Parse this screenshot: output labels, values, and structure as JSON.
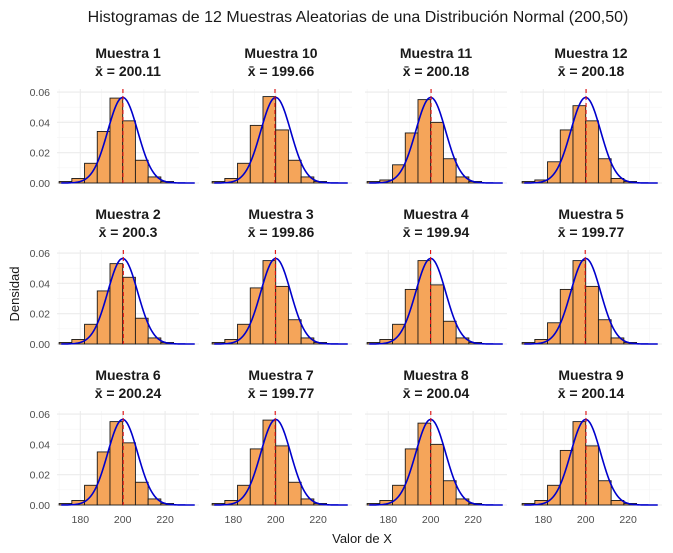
{
  "chart_data": {
    "type": "bar",
    "title": "Histogramas de 12 Muestras Aleatorias de una Distribución Normal (200,50)",
    "xlabel": "Valor de X",
    "ylabel": "Densidad",
    "xlim": [
      169,
      236
    ],
    "ylim": [
      0,
      0.062
    ],
    "x_ticks": [
      180,
      200,
      220
    ],
    "x_tick_labels": [
      "180",
      "200",
      "220"
    ],
    "y_ticks": [
      0,
      0.02,
      0.04,
      0.06
    ],
    "y_tick_labels": [
      "0.00",
      "0.02",
      "0.04",
      "0.06"
    ],
    "grid": true,
    "bin_edges": [
      170,
      176,
      182,
      188,
      194,
      200,
      206,
      212,
      218,
      224,
      230
    ],
    "normal_curve": {
      "mean": 200,
      "sd": 7.07
    },
    "panels": [
      {
        "name": "Muestra 1",
        "mean_label": "x̄ = 200.11",
        "densities": [
          0.001,
          0.003,
          0.013,
          0.034,
          0.056,
          0.041,
          0.015,
          0.004,
          0.001,
          0.0
        ]
      },
      {
        "name": "Muestra 10",
        "mean_label": "x̄ = 199.66",
        "densities": [
          0.001,
          0.003,
          0.013,
          0.038,
          0.057,
          0.035,
          0.015,
          0.004,
          0.001,
          0.0
        ]
      },
      {
        "name": "Muestra 11",
        "mean_label": "x̄ = 200.18",
        "densities": [
          0.001,
          0.002,
          0.012,
          0.033,
          0.055,
          0.04,
          0.016,
          0.004,
          0.001,
          0.0
        ]
      },
      {
        "name": "Muestra 12",
        "mean_label": "x̄ = 200.18",
        "densities": [
          0.001,
          0.002,
          0.014,
          0.035,
          0.051,
          0.041,
          0.016,
          0.003,
          0.001,
          0.0
        ]
      },
      {
        "name": "Muestra 2",
        "mean_label": "x̄ = 200.3",
        "densities": [
          0.001,
          0.003,
          0.013,
          0.035,
          0.053,
          0.044,
          0.017,
          0.004,
          0.001,
          0.0
        ]
      },
      {
        "name": "Muestra 3",
        "mean_label": "x̄ = 199.86",
        "densities": [
          0.001,
          0.003,
          0.013,
          0.037,
          0.055,
          0.038,
          0.016,
          0.004,
          0.001,
          0.0
        ]
      },
      {
        "name": "Muestra 4",
        "mean_label": "x̄ = 199.94",
        "densities": [
          0.001,
          0.003,
          0.013,
          0.036,
          0.055,
          0.039,
          0.015,
          0.004,
          0.001,
          0.0
        ]
      },
      {
        "name": "Muestra 5",
        "mean_label": "x̄ = 199.77",
        "densities": [
          0.001,
          0.003,
          0.014,
          0.036,
          0.055,
          0.038,
          0.016,
          0.004,
          0.001,
          0.0
        ]
      },
      {
        "name": "Muestra 6",
        "mean_label": "x̄ = 200.24",
        "densities": [
          0.001,
          0.003,
          0.013,
          0.035,
          0.055,
          0.041,
          0.015,
          0.004,
          0.001,
          0.0
        ]
      },
      {
        "name": "Muestra 7",
        "mean_label": "x̄ = 199.77",
        "densities": [
          0.001,
          0.003,
          0.013,
          0.037,
          0.056,
          0.039,
          0.015,
          0.004,
          0.001,
          0.0
        ]
      },
      {
        "name": "Muestra 8",
        "mean_label": "x̄ = 200.04",
        "densities": [
          0.001,
          0.003,
          0.013,
          0.037,
          0.054,
          0.04,
          0.016,
          0.004,
          0.001,
          0.0
        ]
      },
      {
        "name": "Muestra 9",
        "mean_label": "x̄ = 200.14",
        "densities": [
          0.001,
          0.003,
          0.013,
          0.036,
          0.055,
          0.039,
          0.016,
          0.003,
          0.001,
          0.0
        ]
      }
    ],
    "colors": {
      "bar_fill": "#f5a55a",
      "bar_stroke": "#1a1a1a",
      "curve": "#0000cc",
      "mean_line": "#e01010",
      "grid_major": "#ebebeb",
      "grid_minor": "#f4f4f4"
    }
  }
}
